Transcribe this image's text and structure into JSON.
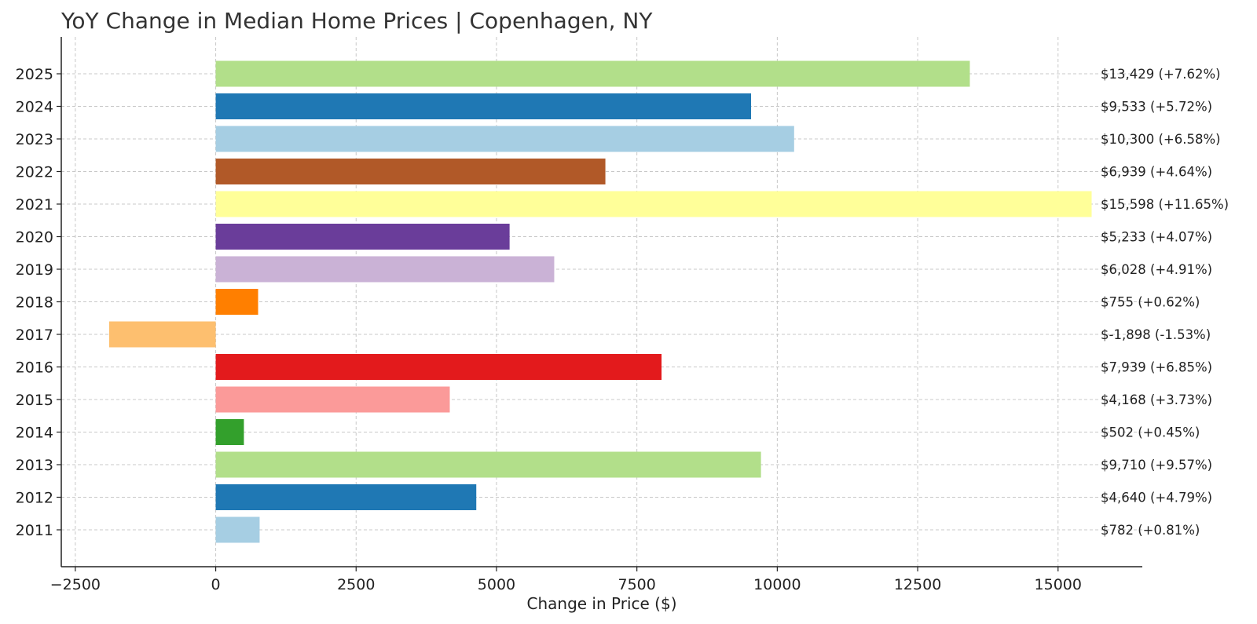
{
  "chart_data": {
    "type": "bar",
    "orientation": "horizontal",
    "title": "YoY Change in Median Home Prices | Copenhagen, NY",
    "xlabel": "Change in Price ($)",
    "ylabel": "",
    "xlim": [
      -2750,
      16500
    ],
    "xticks": [
      -2500,
      0,
      2500,
      5000,
      7500,
      10000,
      12500,
      15000
    ],
    "xtick_labels": [
      "−2500",
      "0",
      "2500",
      "5000",
      "7500",
      "10000",
      "12500",
      "15000"
    ],
    "grid": true,
    "categories": [
      "2025",
      "2024",
      "2023",
      "2022",
      "2021",
      "2020",
      "2019",
      "2018",
      "2017",
      "2016",
      "2015",
      "2014",
      "2013",
      "2012",
      "2011"
    ],
    "values": [
      13429,
      9533,
      10300,
      6939,
      15598,
      5233,
      6028,
      755,
      -1898,
      7939,
      4168,
      502,
      9710,
      4640,
      782
    ],
    "data_labels": [
      "$13,429 (+7.62%)",
      "$9,533 (+5.72%)",
      "$10,300 (+6.58%)",
      "$6,939 (+4.64%)",
      "$15,598 (+11.65%)",
      "$5,233 (+4.07%)",
      "$6,028 (+4.91%)",
      "$755 (+0.62%)",
      "$-1,898 (-1.53%)",
      "$7,939 (+6.85%)",
      "$4,168 (+3.73%)",
      "$502 (+0.45%)",
      "$9,710 (+9.57%)",
      "$4,640 (+4.79%)",
      "$782 (+0.81%)"
    ],
    "colors": [
      "#b2df8a",
      "#1f78b4",
      "#a6cee3",
      "#b15928",
      "#ffff99",
      "#6a3d9a",
      "#cab2d6",
      "#ff7f00",
      "#fdbf6f",
      "#e31a1c",
      "#fb9a99",
      "#33a02c",
      "#b2df8a",
      "#1f78b4",
      "#a6cee3"
    ]
  }
}
